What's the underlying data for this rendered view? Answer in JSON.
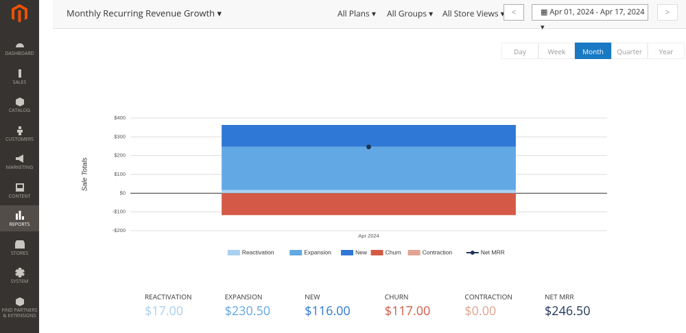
{
  "sidebar": {
    "items": [
      "DASHBOARD",
      "SALES",
      "CATALOG",
      "CUSTOMERS",
      "MARKETING",
      "CONTENT",
      "REPORTS",
      "STORES",
      "SYSTEM",
      "FIND PARTNERS & EXTENSIONS"
    ]
  },
  "header": {
    "title": "Monthly Recurring Revenue Growth",
    "filters": [
      "All Plans",
      "All Groups",
      "All Store Views"
    ],
    "date_range": "Apr 01, 2024 - Apr 17, 2024"
  },
  "periods": [
    "Day",
    "Week",
    "Month",
    "Quarter",
    "Year"
  ],
  "chart_data": {
    "type": "bar",
    "stacked": true,
    "y_label": "Sale Totals",
    "categories": [
      "Apr 2024"
    ],
    "series": [
      {
        "name": "Reactivation",
        "color": "#a9d0f0",
        "values": [
          17
        ]
      },
      {
        "name": "Expansion",
        "color": "#62a8e5",
        "values": [
          230.5
        ]
      },
      {
        "name": "New",
        "color": "#2f78d5",
        "values": [
          116
        ]
      },
      {
        "name": "Churn",
        "color": "#d45a47",
        "values": [
          -117
        ]
      },
      {
        "name": "Contraction",
        "color": "#e0a592",
        "values": [
          0
        ]
      },
      {
        "name": "Net MRR",
        "color": "#1d3656",
        "type": "line",
        "values": [
          246.5
        ]
      }
    ],
    "ylim": [
      -200,
      400
    ],
    "yticks": [
      {
        "value": -200,
        "label": "-$200"
      },
      {
        "value": -100,
        "label": "-$100"
      },
      {
        "value": 0,
        "label": "$0"
      },
      {
        "value": 100,
        "label": "$100"
      },
      {
        "value": 200,
        "label": "$200"
      },
      {
        "value": 300,
        "label": "$300"
      },
      {
        "value": 400,
        "label": "$400"
      }
    ],
    "grid": true
  },
  "summary": [
    {
      "label": "REACTIVATION",
      "value": "$17.00"
    },
    {
      "label": "EXPANSION",
      "value": "$230.50"
    },
    {
      "label": "NEW",
      "value": "$116.00"
    },
    {
      "label": "CHURN",
      "value": "$117.00"
    },
    {
      "label": "CONTRACTION",
      "value": "$0.00"
    },
    {
      "label": "NET MRR",
      "value": "$246.50"
    }
  ]
}
